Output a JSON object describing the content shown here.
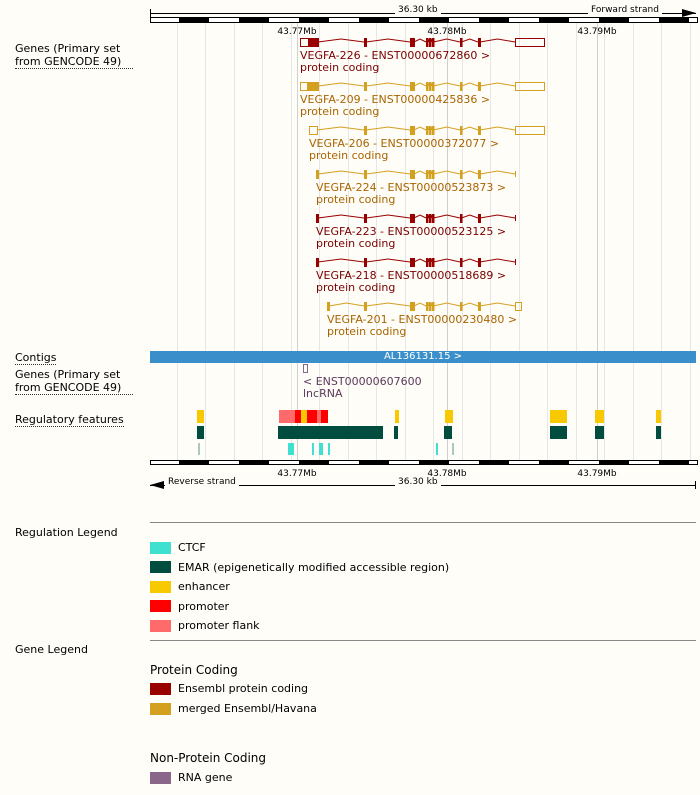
{
  "ruler": {
    "length": "36.30 kb",
    "forward": "Forward strand",
    "reverse": "Reverse strand",
    "ticks": [
      "43.77Mb",
      "43.78Mb",
      "43.79Mb"
    ]
  },
  "tracks": {
    "genes": "Genes (Primary set from GENCODE 49)",
    "contigs": "Contigs",
    "genes2": "Genes (Primary set from GENCODE 49)",
    "regulatory": "Regulatory features"
  },
  "transcripts": [
    {
      "name": "VEGFA-226 - ENST00000672860 >",
      "biotype": "protein coding",
      "color": "#990000"
    },
    {
      "name": "VEGFA-209 - ENST00000425836 >",
      "biotype": "protein coding",
      "color": "#d4a020"
    },
    {
      "name": "VEGFA-206 - ENST00000372077 >",
      "biotype": "protein coding",
      "color": "#d4a020"
    },
    {
      "name": "VEGFA-224 - ENST00000523873 >",
      "biotype": "protein coding",
      "color": "#d4a020"
    },
    {
      "name": "VEGFA-223 - ENST00000523125 >",
      "biotype": "protein coding",
      "color": "#990000"
    },
    {
      "name": "VEGFA-218 - ENST00000518689 >",
      "biotype": "protein coding",
      "color": "#990000"
    },
    {
      "name": "VEGFA-201 - ENST00000230480 >",
      "biotype": "protein coding",
      "color": "#d4a020"
    }
  ],
  "contig": {
    "name": "AL136131.15 >",
    "color": "#3a8fcb"
  },
  "lncrna": {
    "name": "< ENST00000607600",
    "biotype": "lncRNA",
    "color": "#8b668b"
  },
  "regulation_legend": {
    "title": "Regulation Legend",
    "items": [
      {
        "label": "CTCF",
        "color": "#40e0d0"
      },
      {
        "label": "EMAR (epigenetically modified accessible region)",
        "color": "#004d40"
      },
      {
        "label": "enhancer",
        "color": "#f8c800"
      },
      {
        "label": "promoter",
        "color": "#ff0000"
      },
      {
        "label": "promoter flank",
        "color": "#ff6a6a"
      }
    ]
  },
  "gene_legend": {
    "title": "Gene Legend",
    "protein_coding": {
      "title": "Protein Coding",
      "items": [
        {
          "label": "Ensembl protein coding",
          "color": "#990000"
        },
        {
          "label": "merged Ensembl/Havana",
          "color": "#d4a020"
        }
      ]
    },
    "non_protein_coding": {
      "title": "Non-Protein Coding",
      "items": [
        {
          "label": "RNA gene",
          "color": "#8b668b"
        }
      ]
    }
  }
}
